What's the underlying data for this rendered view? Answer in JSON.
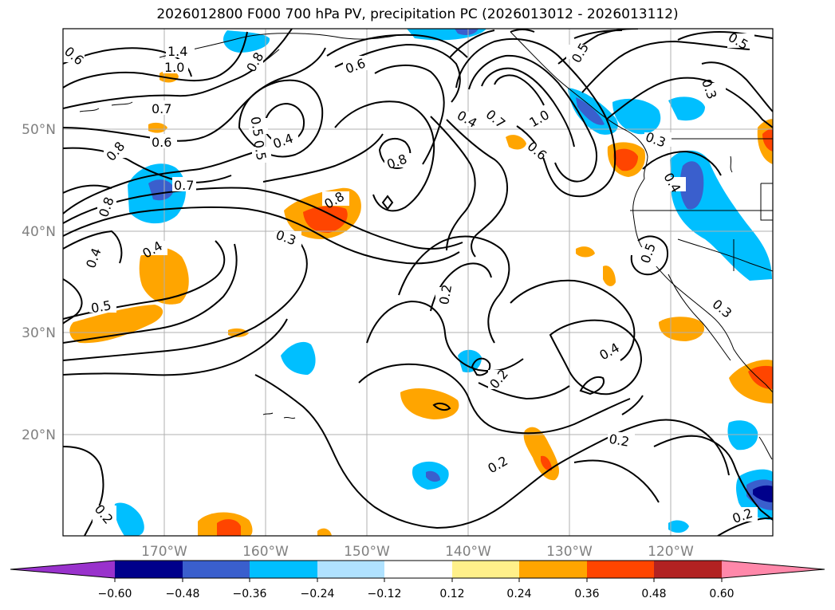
{
  "title": "2026012800 F000 700 hPa PV, precipitation PC (2026013012 - 2026013112)",
  "map": {
    "lon_labels": [
      "170°W",
      "160°W",
      "150°W",
      "140°W",
      "130°W",
      "120°W"
    ],
    "lat_labels": [
      "50°N",
      "40°N",
      "30°N",
      "20°N"
    ],
    "contour_labels": [
      "0.6",
      "1.4",
      "1.0",
      "0.8",
      "0.7",
      "0.6",
      "0.8",
      "0.7",
      "0.8",
      "0.4",
      "0.5",
      "0.5",
      "0.4",
      "0.6",
      "0.8",
      "0.8",
      "0.3",
      "0.4",
      "0.7",
      "1.0",
      "0.6",
      "0.5",
      "0.3",
      "0.5",
      "0.3",
      "0.4",
      "0.5",
      "0.2",
      "0.2",
      "0.4",
      "0.2",
      "0.2",
      "0.2",
      "0.4",
      "0.3",
      "0.5",
      "0.2"
    ]
  },
  "colorbar": {
    "colors": [
      "#9932cc",
      "#00008b",
      "#3a5fcd",
      "#00bfff",
      "#b0e2ff",
      "#ffffff",
      "#fff08a",
      "#ffa500",
      "#ff4500",
      "#b22222",
      "#ff88aa"
    ],
    "tick_labels": [
      "−0.60",
      "−0.48",
      "−0.36",
      "−0.24",
      "−0.12",
      "0.12",
      "0.24",
      "0.36",
      "0.48",
      "0.60"
    ]
  }
}
